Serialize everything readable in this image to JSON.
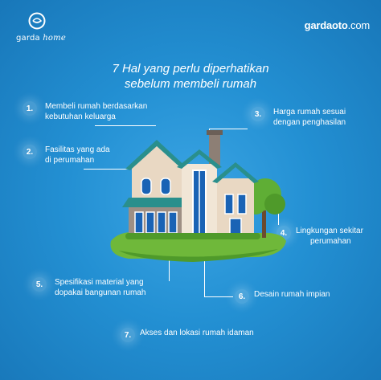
{
  "brand": {
    "left_name_plain": "garda",
    "left_name_italic": "home",
    "right_name_bold": "gardaoto",
    "right_name_tail": ".com"
  },
  "title": {
    "line1": "7 Hal yang perlu diperhatikan",
    "line2": "sebelum membeli rumah"
  },
  "items": [
    {
      "num": "1.",
      "line1": "Membeli rumah berdasarkan",
      "line2": "kebutuhan keluarga"
    },
    {
      "num": "2.",
      "line1": "Fasilitas yang ada",
      "line2": "di perumahan"
    },
    {
      "num": "3.",
      "line1": "Harga rumah sesuai",
      "line2": "dengan penghasilan"
    },
    {
      "num": "4.",
      "line1": "Lingkungan sekitar",
      "line2": "perumahan"
    },
    {
      "num": "5.",
      "line1": "Spesifikasi material yang",
      "line2": "dopakai bangunan rumah"
    },
    {
      "num": "6.",
      "line1": "Desain rumah impian",
      "line2": ""
    },
    {
      "num": "7.",
      "line1": "Akses dan lokasi rumah idaman",
      "line2": ""
    }
  ],
  "colors": {
    "background": "#2390d3",
    "roof": "#2a8f8c",
    "wall": "#e9d8c3",
    "stone": "#9e8f84",
    "grass": "#6fb83a",
    "window": "#1a63b5"
  }
}
